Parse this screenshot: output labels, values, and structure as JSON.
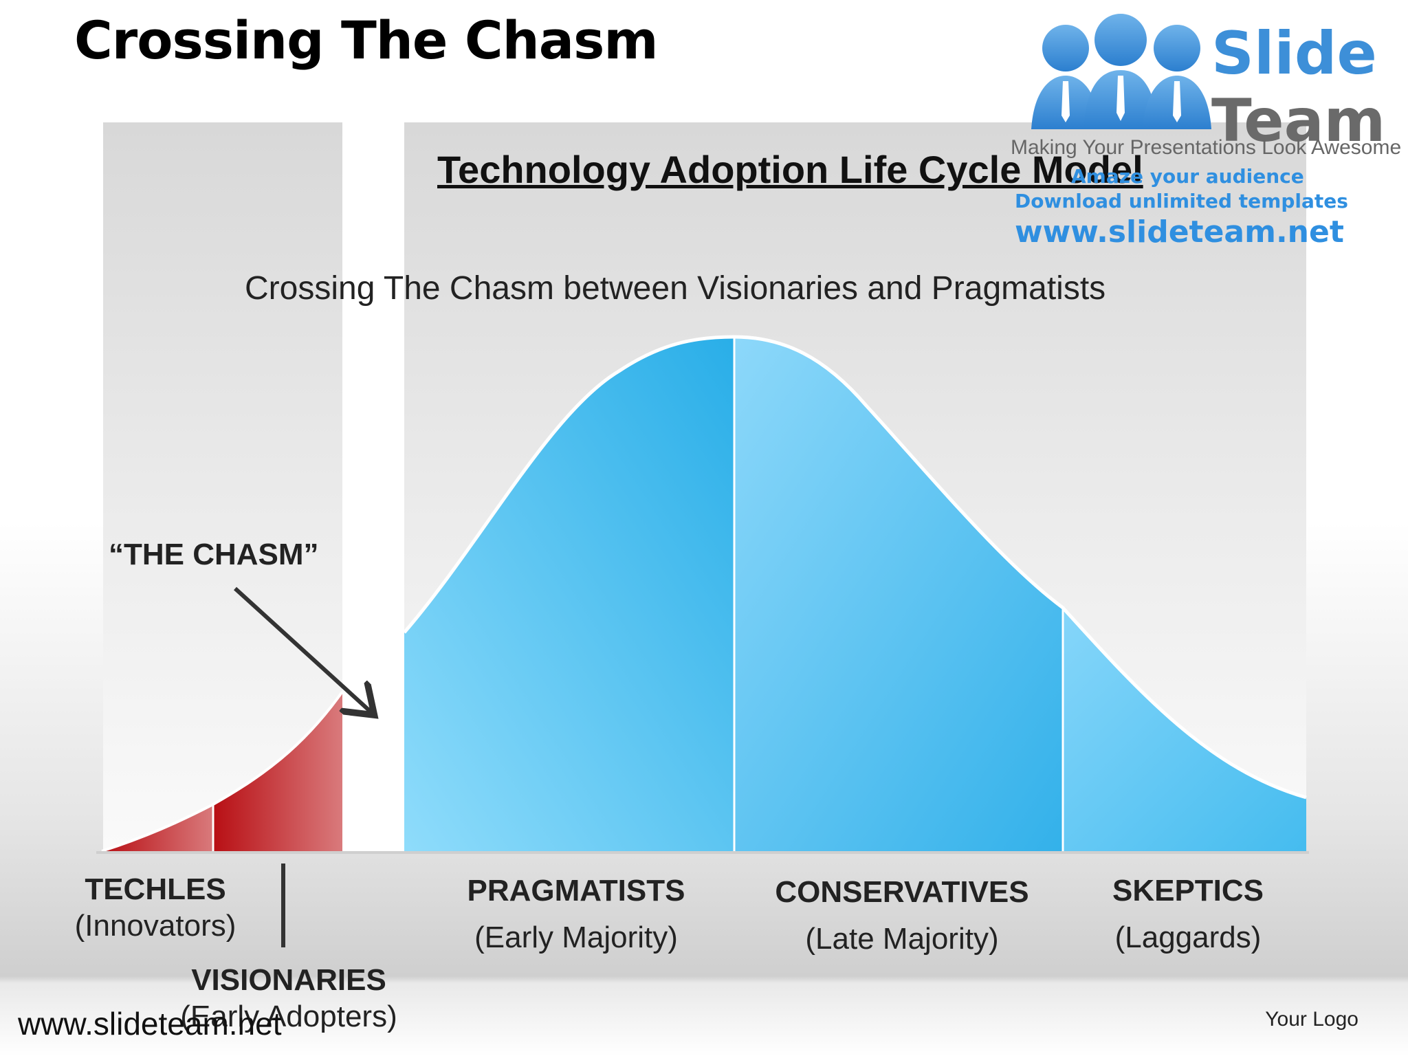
{
  "slide": {
    "title": "Crossing The Chasm",
    "footer_url": "www.slideteam.net",
    "your_logo": "Your Logo"
  },
  "logo": {
    "brand_line1": "Slide",
    "brand_line2": "Team",
    "tagline": "Making Your Presentations Look Awesome",
    "promo_line1": "Amaze your audience",
    "promo_line2": "Download unlimited templates",
    "promo_line3": "www.slideteam.net",
    "icon": "people-group-icon",
    "colors": {
      "blue": "#3d8fd8",
      "gray": "#6a6a6a"
    }
  },
  "diagram": {
    "title": "Technology Adoption Life Cycle Model",
    "subtitle": "Crossing The Chasm between Visionaries and Pragmatists",
    "chasm_label": "“THE CHASM”",
    "segments": [
      {
        "name": "TECHLES",
        "subtitle": "(Innovators)",
        "color": "#c0181c"
      },
      {
        "name": "VISIONARIES",
        "subtitle": "(Early Adopters)",
        "color": "#c0181c"
      },
      {
        "name": "PRAGMATISTS",
        "subtitle": "(Early Majority)",
        "color": "#3bb8ee"
      },
      {
        "name": "CONSERVATIVES",
        "subtitle": "(Late Majority)",
        "color": "#3bb8ee"
      },
      {
        "name": "SKEPTICS",
        "subtitle": "(Laggards)",
        "color": "#3bb8ee"
      }
    ],
    "colors": {
      "red": "#c0181c",
      "blue": "#3bb8ee",
      "chasm": "#ffffff",
      "panel": "#dcdcdc"
    }
  }
}
